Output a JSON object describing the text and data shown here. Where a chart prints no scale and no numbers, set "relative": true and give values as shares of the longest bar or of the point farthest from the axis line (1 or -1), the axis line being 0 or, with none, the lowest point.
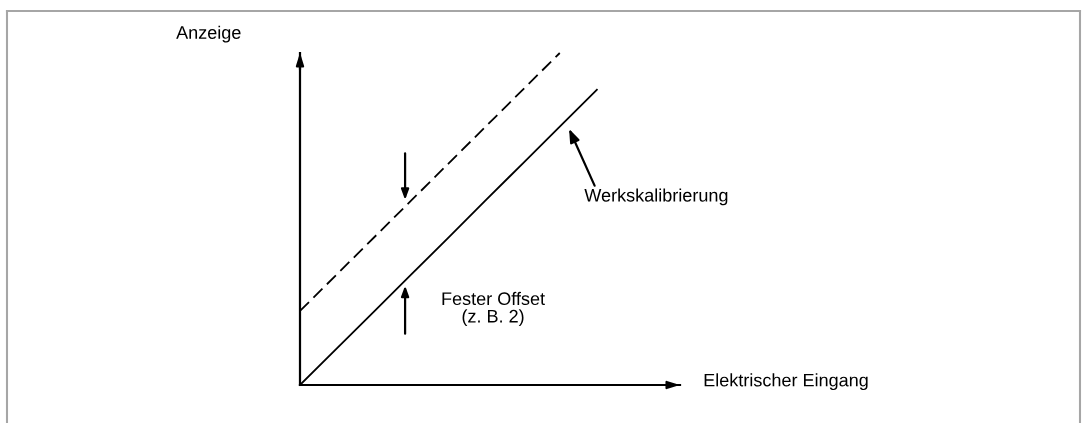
{
  "chart_data": {
    "type": "line",
    "relative": true,
    "xlabel": "Elektrischer Eingang",
    "ylabel": "Anzeige",
    "categories": [
      null,
      null,
      null,
      null,
      null,
      null,
      null,
      null,
      null
    ],
    "series": [
      {
        "name": "Werkskalibrierung",
        "color": "#000000",
        "line_style": "solid",
        "values": [
          0,
          0.111,
          0.222,
          0.333,
          0.444,
          0.556,
          0.667,
          0.778,
          0.889
        ]
      },
      {
        "color": "#000000",
        "line_style": "dashed",
        "values": [
          0.223,
          0.334,
          0.445,
          0.556,
          0.667,
          0.778,
          0.889,
          1.0,
          null
        ]
      }
    ],
    "annotations": [
      "Fester Offset\n(z. B. 2)"
    ]
  }
}
